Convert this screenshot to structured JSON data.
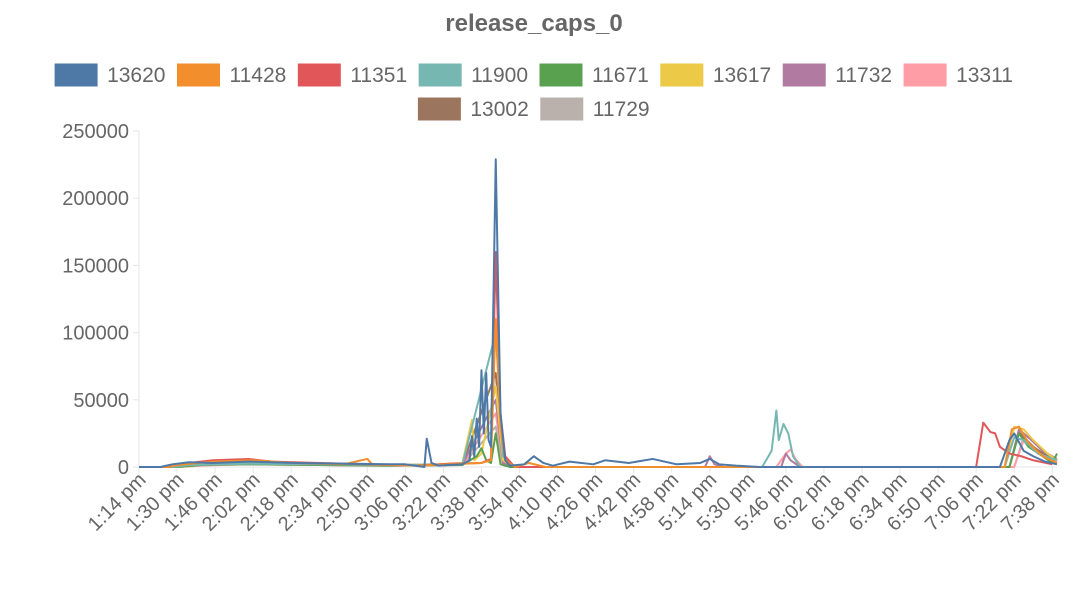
{
  "chart_data": {
    "type": "line",
    "title": "release_caps_0",
    "xlabel": "",
    "ylabel": "",
    "ylim": [
      0,
      250000
    ],
    "y_ticks": [
      "250000",
      "200000",
      "150000",
      "100000",
      "50000",
      "0"
    ],
    "x_ticks": [
      "1:14 pm",
      "1:30 pm",
      "1:46 pm",
      "2:02 pm",
      "2:18 pm",
      "2:34 pm",
      "2:50 pm",
      "3:06 pm",
      "3:22 pm",
      "3:38 pm",
      "3:54 pm",
      "4:10 pm",
      "4:26 pm",
      "4:42 pm",
      "4:58 pm",
      "5:14 pm",
      "5:30 pm",
      "5:46 pm",
      "6:02 pm",
      "6:18 pm",
      "6:34 pm",
      "6:50 pm",
      "7:06 pm",
      "7:22 pm",
      "7:38 pm"
    ],
    "xlim": [
      "1:14 pm",
      "7:40 pm"
    ],
    "legend_position": "top",
    "grid": false,
    "series": [
      {
        "name": "13620",
        "color": "#4e79a7",
        "points": [
          [
            "1:14 pm",
            0
          ],
          [
            "1:23 pm",
            0
          ],
          [
            "1:28 pm",
            2000
          ],
          [
            "1:35 pm",
            3500
          ],
          [
            "1:45 pm",
            3000
          ],
          [
            "2:00 pm",
            4000
          ],
          [
            "2:20 pm",
            3000
          ],
          [
            "2:40 pm",
            2500
          ],
          [
            "3:00 pm",
            2000
          ],
          [
            "3:06 pm",
            2000
          ],
          [
            "3:14 pm",
            0
          ],
          [
            "3:15 pm",
            21000
          ],
          [
            "3:17 pm",
            3000
          ],
          [
            "3:20 pm",
            1000
          ],
          [
            "3:30 pm",
            2000
          ],
          [
            "3:33 pm",
            5000
          ],
          [
            "3:34 pm",
            23000
          ],
          [
            "3:35 pm",
            8000
          ],
          [
            "3:36 pm",
            36000
          ],
          [
            "3:37 pm",
            15000
          ],
          [
            "3:38 pm",
            72000
          ],
          [
            "3:39 pm",
            25000
          ],
          [
            "3:40 pm",
            70000
          ],
          [
            "3:41 pm",
            20000
          ],
          [
            "3:42 pm",
            15000
          ],
          [
            "3:44 pm",
            229000
          ],
          [
            "3:46 pm",
            40000
          ],
          [
            "3:48 pm",
            5000
          ],
          [
            "3:50 pm",
            1000
          ],
          [
            "3:56 pm",
            2000
          ],
          [
            "4:00 pm",
            8000
          ],
          [
            "4:04 pm",
            3000
          ],
          [
            "4:08 pm",
            1000
          ],
          [
            "4:15 pm",
            4000
          ],
          [
            "4:25 pm",
            2000
          ],
          [
            "4:30 pm",
            5000
          ],
          [
            "4:40 pm",
            3000
          ],
          [
            "4:50 pm",
            6000
          ],
          [
            "5:00 pm",
            2000
          ],
          [
            "5:10 pm",
            3000
          ],
          [
            "5:14 pm",
            6000
          ],
          [
            "5:18 pm",
            2000
          ],
          [
            "5:25 pm",
            1000
          ],
          [
            "5:35 pm",
            0
          ],
          [
            "7:16 pm",
            0
          ],
          [
            "7:20 pm",
            20000
          ],
          [
            "7:22 pm",
            25000
          ],
          [
            "7:26 pm",
            12000
          ],
          [
            "7:30 pm",
            8000
          ],
          [
            "7:35 pm",
            4000
          ],
          [
            "7:40 pm",
            2000
          ]
        ]
      },
      {
        "name": "11428",
        "color": "#f28e2b",
        "points": [
          [
            "1:14 pm",
            0
          ],
          [
            "1:26 pm",
            0
          ],
          [
            "1:30 pm",
            1500
          ],
          [
            "1:45 pm",
            4000
          ],
          [
            "2:02 pm",
            5000
          ],
          [
            "2:20 pm",
            3000
          ],
          [
            "2:40 pm",
            2000
          ],
          [
            "2:50 pm",
            6000
          ],
          [
            "2:52 pm",
            2000
          ],
          [
            "3:10 pm",
            1000
          ],
          [
            "3:25 pm",
            2000
          ],
          [
            "3:38 pm",
            3000
          ],
          [
            "3:42 pm",
            5000
          ],
          [
            "3:44 pm",
            110000
          ],
          [
            "3:46 pm",
            30000
          ],
          [
            "3:48 pm",
            5000
          ],
          [
            "3:52 pm",
            0
          ],
          [
            "3:58 pm",
            3000
          ],
          [
            "4:05 pm",
            0
          ],
          [
            "7:18 pm",
            0
          ],
          [
            "7:21 pm",
            28000
          ],
          [
            "7:24 pm",
            30000
          ],
          [
            "7:28 pm",
            18000
          ],
          [
            "7:34 pm",
            8000
          ],
          [
            "7:40 pm",
            3000
          ]
        ]
      },
      {
        "name": "11351",
        "color": "#e15759",
        "points": [
          [
            "1:14 pm",
            0
          ],
          [
            "1:27 pm",
            0
          ],
          [
            "1:30 pm",
            2000
          ],
          [
            "1:45 pm",
            5000
          ],
          [
            "2:00 pm",
            6000
          ],
          [
            "2:10 pm",
            4000
          ],
          [
            "2:30 pm",
            3000
          ],
          [
            "2:50 pm",
            2000
          ],
          [
            "3:10 pm",
            1000
          ],
          [
            "3:25 pm",
            2500
          ],
          [
            "3:38 pm",
            3000
          ],
          [
            "3:42 pm",
            6000
          ],
          [
            "3:44 pm",
            160000
          ],
          [
            "3:46 pm",
            40000
          ],
          [
            "3:48 pm",
            8000
          ],
          [
            "3:52 pm",
            0
          ],
          [
            "7:06 pm",
            0
          ],
          [
            "7:09 pm",
            33000
          ],
          [
            "7:12 pm",
            26000
          ],
          [
            "7:14 pm",
            25000
          ],
          [
            "7:16 pm",
            15000
          ],
          [
            "7:20 pm",
            10000
          ],
          [
            "7:25 pm",
            8000
          ],
          [
            "7:30 pm",
            5000
          ],
          [
            "7:38 pm",
            2000
          ]
        ]
      },
      {
        "name": "11900",
        "color": "#76b7b2",
        "points": [
          [
            "1:14 pm",
            0
          ],
          [
            "1:28 pm",
            0
          ],
          [
            "1:35 pm",
            1500
          ],
          [
            "2:00 pm",
            2500
          ],
          [
            "2:30 pm",
            2000
          ],
          [
            "3:00 pm",
            1500
          ],
          [
            "3:30 pm",
            2000
          ],
          [
            "3:44 pm",
            100000
          ],
          [
            "3:47 pm",
            8000
          ],
          [
            "3:52 pm",
            0
          ],
          [
            "5:36 pm",
            0
          ],
          [
            "5:40 pm",
            12000
          ],
          [
            "5:42 pm",
            42000
          ],
          [
            "5:43 pm",
            20000
          ],
          [
            "5:45 pm",
            32000
          ],
          [
            "5:47 pm",
            25000
          ],
          [
            "5:49 pm",
            8000
          ],
          [
            "5:52 pm",
            0
          ],
          [
            "7:18 pm",
            0
          ],
          [
            "7:22 pm",
            22000
          ],
          [
            "7:26 pm",
            20000
          ],
          [
            "7:32 pm",
            10000
          ],
          [
            "7:40 pm",
            5000
          ]
        ]
      },
      {
        "name": "11671",
        "color": "#59a14f",
        "points": [
          [
            "1:14 pm",
            0
          ],
          [
            "1:30 pm",
            0
          ],
          [
            "1:40 pm",
            1500
          ],
          [
            "2:00 pm",
            2000
          ],
          [
            "2:30 pm",
            1500
          ],
          [
            "3:00 pm",
            1000
          ],
          [
            "3:30 pm",
            1500
          ],
          [
            "3:36 pm",
            8000
          ],
          [
            "3:38 pm",
            14000
          ],
          [
            "3:40 pm",
            5000
          ],
          [
            "3:42 pm",
            3000
          ],
          [
            "3:44 pm",
            25000
          ],
          [
            "3:46 pm",
            2000
          ],
          [
            "3:50 pm",
            0
          ],
          [
            "7:20 pm",
            0
          ],
          [
            "7:24 pm",
            25000
          ],
          [
            "7:28 pm",
            15000
          ],
          [
            "7:34 pm",
            8000
          ],
          [
            "7:38 pm",
            3000
          ],
          [
            "7:40 pm",
            10000
          ]
        ]
      },
      {
        "name": "13617",
        "color": "#edc948",
        "points": [
          [
            "1:14 pm",
            0
          ],
          [
            "1:30 pm",
            0
          ],
          [
            "1:40 pm",
            1500
          ],
          [
            "2:00 pm",
            3000
          ],
          [
            "2:30 pm",
            2000
          ],
          [
            "3:00 pm",
            1500
          ],
          [
            "3:20 pm",
            2000
          ],
          [
            "3:30 pm",
            3000
          ],
          [
            "3:34 pm",
            35000
          ],
          [
            "3:35 pm",
            5000
          ],
          [
            "3:38 pm",
            10000
          ],
          [
            "3:44 pm",
            60000
          ],
          [
            "3:47 pm",
            5000
          ],
          [
            "3:52 pm",
            0
          ],
          [
            "7:18 pm",
            0
          ],
          [
            "7:22 pm",
            30000
          ],
          [
            "7:26 pm",
            28000
          ],
          [
            "7:30 pm",
            20000
          ],
          [
            "7:36 pm",
            10000
          ],
          [
            "7:40 pm",
            5000
          ]
        ]
      },
      {
        "name": "11732",
        "color": "#b07aa1",
        "points": [
          [
            "1:14 pm",
            0
          ],
          [
            "1:30 pm",
            0
          ],
          [
            "1:40 pm",
            1500
          ],
          [
            "2:00 pm",
            2500
          ],
          [
            "2:30 pm",
            1500
          ],
          [
            "3:00 pm",
            1500
          ],
          [
            "3:30 pm",
            2000
          ],
          [
            "3:44 pm",
            50000
          ],
          [
            "3:47 pm",
            3000
          ],
          [
            "3:52 pm",
            0
          ],
          [
            "5:12 pm",
            0
          ],
          [
            "5:14 pm",
            8000
          ],
          [
            "5:16 pm",
            2000
          ],
          [
            "5:20 pm",
            0
          ],
          [
            "5:44 pm",
            0
          ],
          [
            "5:46 pm",
            10000
          ],
          [
            "5:48 pm",
            5000
          ],
          [
            "5:52 pm",
            0
          ],
          [
            "7:20 pm",
            0
          ],
          [
            "7:24 pm",
            28000
          ],
          [
            "7:28 pm",
            22000
          ],
          [
            "7:34 pm",
            12000
          ],
          [
            "7:40 pm",
            6000
          ]
        ]
      },
      {
        "name": "13311",
        "color": "#ff9da7",
        "points": [
          [
            "1:14 pm",
            0
          ],
          [
            "1:30 pm",
            0
          ],
          [
            "1:40 pm",
            1000
          ],
          [
            "2:00 pm",
            2000
          ],
          [
            "2:30 pm",
            1500
          ],
          [
            "3:00 pm",
            1000
          ],
          [
            "3:30 pm",
            1500
          ],
          [
            "3:44 pm",
            40000
          ],
          [
            "3:47 pm",
            2000
          ],
          [
            "3:52 pm",
            0
          ],
          [
            "5:42 pm",
            0
          ],
          [
            "5:46 pm",
            10000
          ],
          [
            "5:48 pm",
            13000
          ],
          [
            "5:50 pm",
            6000
          ],
          [
            "5:53 pm",
            0
          ],
          [
            "7:22 pm",
            0
          ],
          [
            "7:26 pm",
            20000
          ],
          [
            "7:32 pm",
            10000
          ],
          [
            "7:40 pm",
            4000
          ]
        ]
      },
      {
        "name": "13002",
        "color": "#9c755f",
        "points": [
          [
            "1:14 pm",
            0
          ],
          [
            "1:30 pm",
            0
          ],
          [
            "1:45 pm",
            2000
          ],
          [
            "2:00 pm",
            3000
          ],
          [
            "2:30 pm",
            2000
          ],
          [
            "3:00 pm",
            1500
          ],
          [
            "3:30 pm",
            2000
          ],
          [
            "3:44 pm",
            70000
          ],
          [
            "3:47 pm",
            3000
          ],
          [
            "3:52 pm",
            0
          ],
          [
            "7:20 pm",
            0
          ],
          [
            "7:24 pm",
            26000
          ],
          [
            "7:30 pm",
            15000
          ],
          [
            "7:36 pm",
            8000
          ],
          [
            "7:40 pm",
            4000
          ]
        ]
      },
      {
        "name": "11729",
        "color": "#bab0ac",
        "points": [
          [
            "1:14 pm",
            0
          ],
          [
            "1:30 pm",
            0
          ],
          [
            "1:45 pm",
            1500
          ],
          [
            "2:00 pm",
            2000
          ],
          [
            "2:30 pm",
            1500
          ],
          [
            "3:00 pm",
            1000
          ],
          [
            "3:30 pm",
            1500
          ],
          [
            "3:44 pm",
            30000
          ],
          [
            "3:47 pm",
            2000
          ],
          [
            "3:52 pm",
            0
          ],
          [
            "7:22 pm",
            0
          ],
          [
            "7:26 pm",
            22000
          ],
          [
            "7:32 pm",
            12000
          ],
          [
            "7:40 pm",
            5000
          ]
        ]
      }
    ]
  }
}
